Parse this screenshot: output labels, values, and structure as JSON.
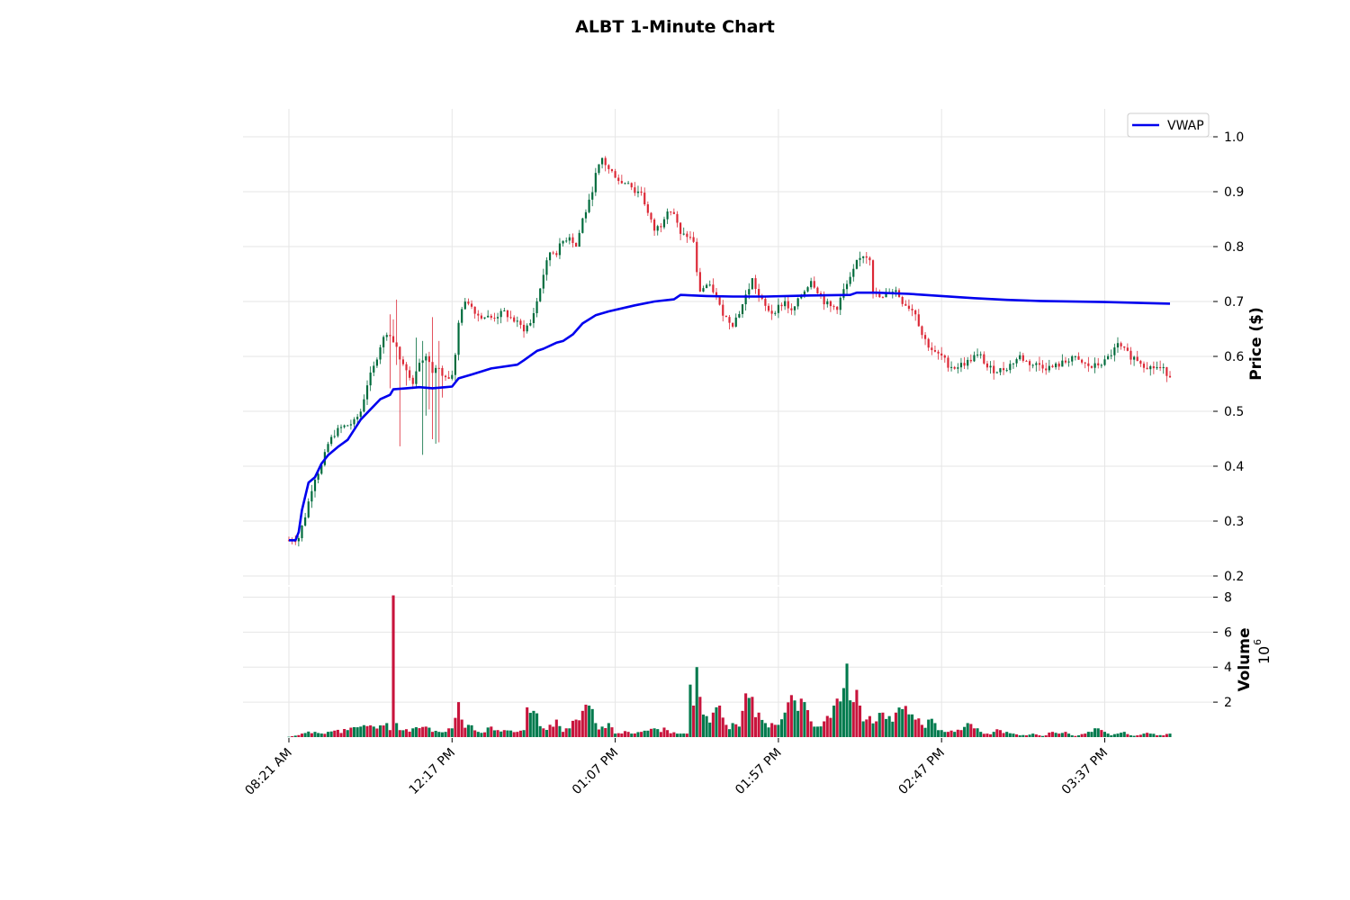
{
  "chart_data": {
    "type": "candlestick",
    "title": "ALBT 1-Minute Chart",
    "colors": {
      "up": "#006b3c",
      "down": "#dc2836",
      "vwap": "#0000ee",
      "volume_up": "#007a4d",
      "volume_down": "#c8143c",
      "grid": "#e6e6e6"
    },
    "legend": {
      "entries": [
        "VWAP"
      ],
      "placement": "top-right"
    },
    "grid": true,
    "x_ticks": [
      {
        "label": "08:21 AM",
        "index": 0
      },
      {
        "label": "12:17 PM",
        "index": 50
      },
      {
        "label": "01:07 PM",
        "index": 100
      },
      {
        "label": "01:57 PM",
        "index": 150
      },
      {
        "label": "02:47 PM",
        "index": 200
      },
      {
        "label": "03:37 PM",
        "index": 250
      }
    ],
    "price_panel": {
      "ylabel": "Price ($)",
      "ylim": [
        0.2,
        1.05
      ],
      "yticks": [
        0.2,
        0.3,
        0.4,
        0.5,
        0.6,
        0.7,
        0.8,
        0.9,
        1.0
      ],
      "ytick_labels": [
        "0.2",
        "0.3",
        "0.4",
        "0.5",
        "0.6",
        "0.7",
        "0.8",
        "0.9",
        "1.0"
      ]
    },
    "volume_panel": {
      "ylabel": "Volume",
      "exponent_label": "10",
      "exponent_power": "6",
      "ylim": [
        0,
        8.2
      ],
      "yticks": [
        2,
        4,
        6,
        8
      ],
      "ytick_labels": [
        "2",
        "4",
        "6",
        "8"
      ]
    },
    "price_anchors": [
      [
        0,
        0.265
      ],
      [
        3,
        0.27
      ],
      [
        5,
        0.31
      ],
      [
        7,
        0.36
      ],
      [
        8,
        0.38
      ],
      [
        10,
        0.4
      ],
      [
        12,
        0.44
      ],
      [
        14,
        0.46
      ],
      [
        16,
        0.47
      ],
      [
        18,
        0.475
      ],
      [
        20,
        0.48
      ],
      [
        22,
        0.5
      ],
      [
        24,
        0.55
      ],
      [
        26,
        0.58
      ],
      [
        28,
        0.62
      ],
      [
        30,
        0.645
      ],
      [
        32,
        0.63
      ],
      [
        34,
        0.6
      ],
      [
        36,
        0.58
      ],
      [
        38,
        0.55
      ],
      [
        40,
        0.59
      ],
      [
        42,
        0.6
      ],
      [
        44,
        0.57
      ],
      [
        46,
        0.58
      ],
      [
        48,
        0.56
      ],
      [
        50,
        0.57
      ],
      [
        51,
        0.6
      ],
      [
        52,
        0.66
      ],
      [
        53,
        0.69
      ],
      [
        55,
        0.7
      ],
      [
        58,
        0.675
      ],
      [
        62,
        0.67
      ],
      [
        66,
        0.68
      ],
      [
        70,
        0.66
      ],
      [
        72,
        0.65
      ],
      [
        74,
        0.66
      ],
      [
        76,
        0.7
      ],
      [
        78,
        0.75
      ],
      [
        80,
        0.79
      ],
      [
        82,
        0.79
      ],
      [
        84,
        0.81
      ],
      [
        86,
        0.82
      ],
      [
        88,
        0.8
      ],
      [
        90,
        0.85
      ],
      [
        92,
        0.88
      ],
      [
        94,
        0.93
      ],
      [
        96,
        0.96
      ],
      [
        98,
        0.94
      ],
      [
        100,
        0.93
      ],
      [
        102,
        0.915
      ],
      [
        104,
        0.92
      ],
      [
        106,
        0.9
      ],
      [
        108,
        0.9
      ],
      [
        110,
        0.86
      ],
      [
        112,
        0.83
      ],
      [
        114,
        0.84
      ],
      [
        116,
        0.87
      ],
      [
        118,
        0.86
      ],
      [
        120,
        0.82
      ],
      [
        122,
        0.82
      ],
      [
        124,
        0.81
      ],
      [
        125,
        0.75
      ],
      [
        126,
        0.72
      ],
      [
        128,
        0.73
      ],
      [
        130,
        0.72
      ],
      [
        132,
        0.69
      ],
      [
        134,
        0.67
      ],
      [
        136,
        0.66
      ],
      [
        138,
        0.68
      ],
      [
        140,
        0.71
      ],
      [
        142,
        0.74
      ],
      [
        144,
        0.71
      ],
      [
        146,
        0.69
      ],
      [
        148,
        0.68
      ],
      [
        150,
        0.69
      ],
      [
        152,
        0.7
      ],
      [
        154,
        0.68
      ],
      [
        156,
        0.7
      ],
      [
        158,
        0.72
      ],
      [
        160,
        0.74
      ],
      [
        162,
        0.72
      ],
      [
        164,
        0.7
      ],
      [
        166,
        0.69
      ],
      [
        168,
        0.69
      ],
      [
        170,
        0.72
      ],
      [
        172,
        0.74
      ],
      [
        174,
        0.77
      ],
      [
        176,
        0.785
      ],
      [
        178,
        0.78
      ],
      [
        179,
        0.72
      ],
      [
        180,
        0.71
      ],
      [
        182,
        0.705
      ],
      [
        184,
        0.72
      ],
      [
        186,
        0.72
      ],
      [
        188,
        0.7
      ],
      [
        190,
        0.69
      ],
      [
        192,
        0.68
      ],
      [
        194,
        0.64
      ],
      [
        196,
        0.62
      ],
      [
        198,
        0.605
      ],
      [
        200,
        0.6
      ],
      [
        202,
        0.585
      ],
      [
        204,
        0.58
      ],
      [
        206,
        0.585
      ],
      [
        208,
        0.59
      ],
      [
        210,
        0.6
      ],
      [
        212,
        0.6
      ],
      [
        214,
        0.58
      ],
      [
        216,
        0.575
      ],
      [
        218,
        0.575
      ],
      [
        220,
        0.58
      ],
      [
        222,
        0.59
      ],
      [
        224,
        0.6
      ],
      [
        226,
        0.59
      ],
      [
        228,
        0.585
      ],
      [
        230,
        0.585
      ],
      [
        232,
        0.58
      ],
      [
        234,
        0.58
      ],
      [
        236,
        0.585
      ],
      [
        238,
        0.59
      ],
      [
        240,
        0.6
      ],
      [
        242,
        0.59
      ],
      [
        244,
        0.585
      ],
      [
        246,
        0.58
      ],
      [
        248,
        0.585
      ],
      [
        250,
        0.59
      ],
      [
        252,
        0.605
      ],
      [
        254,
        0.62
      ],
      [
        256,
        0.61
      ],
      [
        258,
        0.6
      ],
      [
        260,
        0.595
      ],
      [
        262,
        0.585
      ],
      [
        264,
        0.58
      ],
      [
        266,
        0.58
      ],
      [
        268,
        0.575
      ],
      [
        270,
        0.565
      ]
    ],
    "vwap": [
      [
        0,
        0.265
      ],
      [
        2,
        0.265
      ],
      [
        3,
        0.28
      ],
      [
        4,
        0.32
      ],
      [
        6,
        0.37
      ],
      [
        8,
        0.38
      ],
      [
        10,
        0.405
      ],
      [
        12,
        0.42
      ],
      [
        15,
        0.435
      ],
      [
        18,
        0.448
      ],
      [
        22,
        0.485
      ],
      [
        28,
        0.522
      ],
      [
        31,
        0.53
      ],
      [
        32,
        0.54
      ],
      [
        36,
        0.542
      ],
      [
        40,
        0.544
      ],
      [
        44,
        0.542
      ],
      [
        48,
        0.544
      ],
      [
        50,
        0.545
      ],
      [
        52,
        0.56
      ],
      [
        56,
        0.567
      ],
      [
        62,
        0.578
      ],
      [
        70,
        0.585
      ],
      [
        72,
        0.593
      ],
      [
        76,
        0.61
      ],
      [
        78,
        0.614
      ],
      [
        82,
        0.625
      ],
      [
        84,
        0.628
      ],
      [
        87,
        0.64
      ],
      [
        90,
        0.66
      ],
      [
        94,
        0.675
      ],
      [
        98,
        0.682
      ],
      [
        106,
        0.693
      ],
      [
        112,
        0.7
      ],
      [
        118,
        0.704
      ],
      [
        120,
        0.712
      ],
      [
        124,
        0.711
      ],
      [
        128,
        0.71
      ],
      [
        136,
        0.709
      ],
      [
        146,
        0.709
      ],
      [
        160,
        0.711
      ],
      [
        172,
        0.712
      ],
      [
        174,
        0.716
      ],
      [
        180,
        0.716
      ],
      [
        190,
        0.714
      ],
      [
        200,
        0.71
      ],
      [
        210,
        0.706
      ],
      [
        220,
        0.703
      ],
      [
        230,
        0.701
      ],
      [
        250,
        0.699
      ],
      [
        270,
        0.696
      ]
    ],
    "volume_anchors": [
      [
        0,
        0.02
      ],
      [
        4,
        0.2
      ],
      [
        8,
        0.3
      ],
      [
        12,
        0.3
      ],
      [
        18,
        0.4
      ],
      [
        22,
        0.6
      ],
      [
        26,
        0.6
      ],
      [
        30,
        0.8
      ],
      [
        31,
        0.4
      ],
      [
        32,
        8.1
      ],
      [
        33,
        0.8
      ],
      [
        34,
        0.4
      ],
      [
        38,
        0.5
      ],
      [
        42,
        0.6
      ],
      [
        44,
        0.3
      ],
      [
        48,
        0.3
      ],
      [
        50,
        0.5
      ],
      [
        51,
        1.1
      ],
      [
        52,
        2.0
      ],
      [
        53,
        1.0
      ],
      [
        55,
        0.7
      ],
      [
        58,
        0.3
      ],
      [
        62,
        0.6
      ],
      [
        66,
        0.4
      ],
      [
        70,
        0.3
      ],
      [
        72,
        0.4
      ],
      [
        73,
        1.7
      ],
      [
        75,
        1.5
      ],
      [
        78,
        0.5
      ],
      [
        82,
        1.0
      ],
      [
        84,
        0.3
      ],
      [
        86,
        0.5
      ],
      [
        88,
        1.0
      ],
      [
        90,
        1.5
      ],
      [
        92,
        1.8
      ],
      [
        94,
        0.8
      ],
      [
        96,
        0.6
      ],
      [
        98,
        0.8
      ],
      [
        100,
        0.2
      ],
      [
        104,
        0.3
      ],
      [
        108,
        0.3
      ],
      [
        112,
        0.5
      ],
      [
        116,
        0.4
      ],
      [
        120,
        0.2
      ],
      [
        122,
        0.2
      ],
      [
        123,
        3.0
      ],
      [
        124,
        1.8
      ],
      [
        125,
        4.0
      ],
      [
        126,
        2.3
      ],
      [
        128,
        1.2
      ],
      [
        130,
        1.4
      ],
      [
        132,
        1.8
      ],
      [
        134,
        0.7
      ],
      [
        136,
        0.8
      ],
      [
        138,
        0.6
      ],
      [
        139,
        1.5
      ],
      [
        140,
        2.5
      ],
      [
        142,
        2.3
      ],
      [
        144,
        1.4
      ],
      [
        146,
        0.8
      ],
      [
        148,
        0.8
      ],
      [
        150,
        0.7
      ],
      [
        152,
        1.4
      ],
      [
        154,
        2.4
      ],
      [
        156,
        1.5
      ],
      [
        158,
        2.0
      ],
      [
        160,
        0.9
      ],
      [
        162,
        0.6
      ],
      [
        164,
        0.9
      ],
      [
        166,
        1.1
      ],
      [
        167,
        1.8
      ],
      [
        168,
        2.2
      ],
      [
        170,
        2.8
      ],
      [
        171,
        4.2
      ],
      [
        172,
        2.1
      ],
      [
        173,
        2.0
      ],
      [
        174,
        2.7
      ],
      [
        175,
        1.8
      ],
      [
        176,
        0.9
      ],
      [
        178,
        1.2
      ],
      [
        180,
        0.9
      ],
      [
        182,
        1.4
      ],
      [
        184,
        1.2
      ],
      [
        186,
        1.4
      ],
      [
        188,
        1.6
      ],
      [
        190,
        1.3
      ],
      [
        192,
        1.0
      ],
      [
        194,
        0.7
      ],
      [
        196,
        1.0
      ],
      [
        198,
        0.8
      ],
      [
        200,
        0.4
      ],
      [
        202,
        0.3
      ],
      [
        204,
        0.3
      ],
      [
        206,
        0.4
      ],
      [
        208,
        0.8
      ],
      [
        210,
        0.5
      ],
      [
        212,
        0.3
      ],
      [
        214,
        0.2
      ],
      [
        216,
        0.3
      ],
      [
        218,
        0.4
      ],
      [
        220,
        0.3
      ],
      [
        222,
        0.2
      ],
      [
        224,
        0.1
      ],
      [
        226,
        0.1
      ],
      [
        228,
        0.2
      ],
      [
        230,
        0.1
      ],
      [
        232,
        0.1
      ],
      [
        234,
        0.3
      ],
      [
        236,
        0.2
      ],
      [
        238,
        0.3
      ],
      [
        240,
        0.1
      ],
      [
        242,
        0.1
      ],
      [
        244,
        0.2
      ],
      [
        246,
        0.3
      ],
      [
        248,
        0.5
      ],
      [
        250,
        0.3
      ],
      [
        252,
        0.1
      ],
      [
        254,
        0.2
      ],
      [
        256,
        0.3
      ],
      [
        258,
        0.1
      ],
      [
        260,
        0.1
      ],
      [
        262,
        0.2
      ],
      [
        264,
        0.2
      ],
      [
        266,
        0.1
      ],
      [
        268,
        0.1
      ],
      [
        270,
        0.2
      ]
    ]
  }
}
